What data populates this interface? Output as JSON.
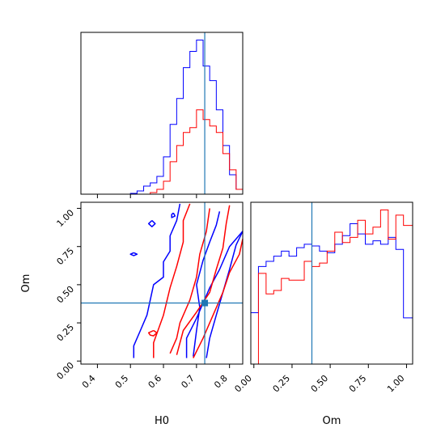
{
  "colors": {
    "series_a": "#0000ff",
    "series_b": "#ff0000",
    "truth": "#1f77b4",
    "frame": "#000000"
  },
  "chart_data": [
    {
      "type": "histogram",
      "panel": "H0 marginal (top-left)",
      "x_variable": "H0",
      "xlim": [
        0.35,
        0.84
      ],
      "bin_edges": [
        0.5,
        0.52,
        0.54,
        0.56,
        0.58,
        0.6,
        0.62,
        0.64,
        0.66,
        0.68,
        0.7,
        0.72,
        0.74,
        0.76,
        0.78,
        0.8,
        0.82,
        0.84
      ],
      "series": [
        {
          "color": "#0000ff",
          "counts": [
            0.5,
            2,
            5,
            7,
            11,
            23,
            43,
            59,
            78,
            88,
            95,
            79,
            70,
            52,
            30,
            12,
            3
          ]
        },
        {
          "color": "#ff0000",
          "counts": [
            0,
            0,
            0,
            1,
            3,
            8,
            20,
            30,
            38,
            41,
            52,
            46,
            42,
            38,
            25,
            15,
            3
          ]
        }
      ],
      "truth_x": 0.725,
      "y_ticks_shown": false
    },
    {
      "type": "contour",
      "panel": "H0 vs Om joint (bottom-left)",
      "xlabel": "H0",
      "ylabel": "Om",
      "xlim": [
        0.35,
        0.84
      ],
      "ylim": [
        -0.02,
        1.04
      ],
      "x_ticks": [
        "0.4",
        "0.5",
        "0.6",
        "0.7",
        "0.8"
      ],
      "y_ticks": [
        "0.00",
        "0.25",
        "0.50",
        "0.75",
        "1.00"
      ],
      "series": [
        {
          "color": "#0000ff",
          "contours": [
            [
              [
                0.51,
                0.02
              ],
              [
                0.51,
                0.1
              ],
              [
                0.53,
                0.2
              ],
              [
                0.55,
                0.3
              ],
              [
                0.56,
                0.4
              ],
              [
                0.57,
                0.5
              ],
              [
                0.6,
                0.55
              ],
              [
                0.6,
                0.65
              ],
              [
                0.62,
                0.72
              ],
              [
                0.62,
                0.82
              ],
              [
                0.64,
                0.92
              ],
              [
                0.65,
                1.03
              ]
            ],
            [
              [
                0.67,
                0.02
              ],
              [
                0.67,
                0.15
              ],
              [
                0.7,
                0.28
              ],
              [
                0.72,
                0.38
              ],
              [
                0.74,
                0.48
              ],
              [
                0.77,
                0.6
              ],
              [
                0.8,
                0.75
              ],
              [
                0.84,
                0.85
              ]
            ],
            [
              [
                0.69,
                0.03
              ],
              [
                0.7,
                0.2
              ],
              [
                0.71,
                0.35
              ],
              [
                0.7,
                0.5
              ],
              [
                0.72,
                0.66
              ],
              [
                0.74,
                0.78
              ],
              [
                0.76,
                0.89
              ],
              [
                0.77,
                0.98
              ]
            ],
            [
              [
                0.73,
                0.02
              ],
              [
                0.74,
                0.15
              ],
              [
                0.76,
                0.3
              ],
              [
                0.78,
                0.45
              ],
              [
                0.8,
                0.6
              ],
              [
                0.82,
                0.76
              ],
              [
                0.84,
                0.85
              ]
            ],
            [
              [
                0.565,
                0.92
              ],
              [
                0.575,
                0.9
              ],
              [
                0.565,
                0.88
              ],
              [
                0.555,
                0.9
              ],
              [
                0.565,
                0.92
              ]
            ],
            [
              [
                0.51,
                0.71
              ],
              [
                0.52,
                0.7
              ],
              [
                0.51,
                0.69
              ],
              [
                0.5,
                0.7
              ],
              [
                0.51,
                0.71
              ]
            ],
            [
              [
                0.63,
                0.97
              ],
              [
                0.635,
                0.95
              ],
              [
                0.625,
                0.94
              ],
              [
                0.625,
                0.96
              ],
              [
                0.63,
                0.97
              ]
            ]
          ]
        },
        {
          "color": "#ff0000",
          "contours": [
            [
              [
                0.57,
                0.02
              ],
              [
                0.57,
                0.12
              ],
              [
                0.6,
                0.3
              ],
              [
                0.62,
                0.48
              ],
              [
                0.64,
                0.62
              ],
              [
                0.66,
                0.78
              ],
              [
                0.66,
                0.92
              ],
              [
                0.68,
                1.03
              ]
            ],
            [
              [
                0.62,
                0.05
              ],
              [
                0.64,
                0.15
              ],
              [
                0.65,
                0.25
              ],
              [
                0.68,
                0.4
              ],
              [
                0.7,
                0.55
              ],
              [
                0.71,
                0.7
              ],
              [
                0.73,
                0.85
              ],
              [
                0.74,
                1.0
              ]
            ],
            [
              [
                0.64,
                0.04
              ],
              [
                0.66,
                0.2
              ],
              [
                0.7,
                0.32
              ],
              [
                0.74,
                0.45
              ],
              [
                0.76,
                0.6
              ],
              [
                0.78,
                0.74
              ],
              [
                0.79,
                0.9
              ],
              [
                0.8,
                1.02
              ]
            ],
            [
              [
                0.69,
                0.02
              ],
              [
                0.72,
                0.15
              ],
              [
                0.75,
                0.3
              ],
              [
                0.78,
                0.45
              ],
              [
                0.8,
                0.58
              ],
              [
                0.83,
                0.7
              ],
              [
                0.84,
                0.8
              ]
            ],
            [
              [
                0.57,
                0.2
              ],
              [
                0.58,
                0.185
              ],
              [
                0.57,
                0.165
              ],
              [
                0.56,
                0.17
              ],
              [
                0.555,
                0.185
              ],
              [
                0.57,
                0.2
              ]
            ]
          ]
        }
      ],
      "truth": {
        "x": 0.725,
        "y": 0.38
      }
    },
    {
      "type": "histogram",
      "panel": "Om marginal (bottom-right)",
      "x_variable": "Om",
      "xlabel": "Om",
      "xlim": [
        -0.02,
        1.04
      ],
      "x_ticks": [
        "0.00",
        "0.25",
        "0.50",
        "0.75",
        "1.00"
      ],
      "bin_edges": [
        -0.02,
        0.03,
        0.08,
        0.13,
        0.18,
        0.23,
        0.28,
        0.33,
        0.38,
        0.43,
        0.48,
        0.53,
        0.58,
        0.63,
        0.68,
        0.73,
        0.78,
        0.83,
        0.88,
        0.93,
        0.98,
        1.04
      ],
      "series": [
        {
          "color": "#0000ff",
          "counts": [
            30,
            57,
            60,
            63,
            66,
            63,
            68,
            70,
            69,
            66,
            65,
            70,
            75,
            82,
            76,
            70,
            72,
            70,
            74,
            67,
            27
          ]
        },
        {
          "color": "#ff0000",
          "counts": [
            0,
            53,
            41,
            43,
            50,
            49,
            49,
            60,
            57,
            59,
            66,
            77,
            71,
            74,
            84,
            76,
            80,
            90,
            73,
            87,
            81
          ]
        }
      ],
      "truth_x": 0.38,
      "y_ticks_shown": false
    }
  ]
}
